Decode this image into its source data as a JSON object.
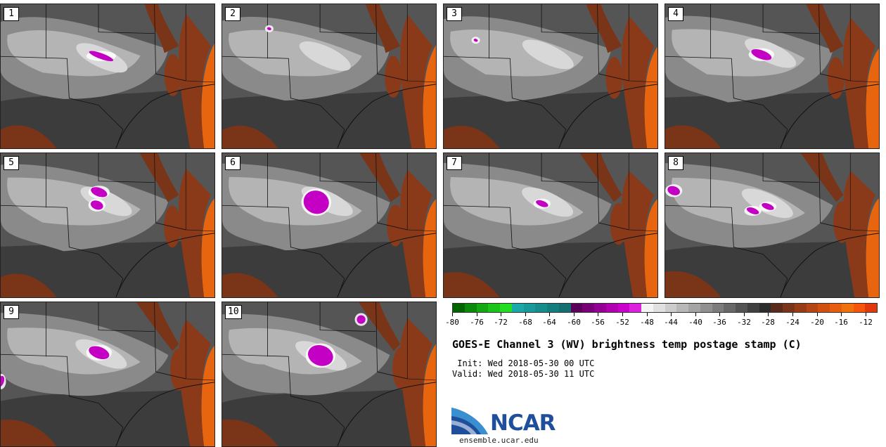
{
  "title": "GOES-E Channel 3 (WV) brightness temp postage stamp (C)",
  "init_label": " Init: Wed 2018-05-30 00 UTC",
  "valid_label": "Valid: Wed 2018-05-30 11 UTC",
  "logo_text": "NCAR",
  "website": "ensemble.ucar.edu",
  "colorbar": {
    "tick_values": [
      "-80",
      "-76",
      "-72",
      "-68",
      "-64",
      "-60",
      "-56",
      "-52",
      "-48",
      "-44",
      "-40",
      "-36",
      "-32",
      "-28",
      "-24",
      "-20",
      "-16",
      "-12"
    ],
    "range": [
      -80,
      -10
    ],
    "colors": [
      "#006400",
      "#0a8a0a",
      "#13a813",
      "#1bc41b",
      "#22dd22",
      "#1aa8a8",
      "#189a9a",
      "#168c8c",
      "#147e7e",
      "#127070",
      "#5a005a",
      "#770077",
      "#940094",
      "#b000b0",
      "#cc00cc",
      "#dd22dd",
      "#f4f4f4",
      "#e0e0e0",
      "#cccccc",
      "#b8b8b8",
      "#a4a4a4",
      "#909090",
      "#7c7c7c",
      "#686868",
      "#545454",
      "#404040",
      "#2c2c2c",
      "#5a2a1a",
      "#7a3418",
      "#983c16",
      "#b54614",
      "#d05010",
      "#e85e10",
      "#f0700e",
      "#f5560c",
      "#e03a0c"
    ]
  },
  "members": [
    {
      "label": "1",
      "blobs": [
        [
          0.47,
          0.36,
          0.06,
          0.02
        ]
      ]
    },
    {
      "label": "2",
      "blobs": [
        [
          0.22,
          0.17,
          0.01,
          0.01
        ]
      ]
    },
    {
      "label": "3",
      "blobs": [
        [
          0.15,
          0.25,
          0.01,
          0.01
        ]
      ]
    },
    {
      "label": "4",
      "blobs": [
        [
          0.45,
          0.35,
          0.05,
          0.03
        ]
      ]
    },
    {
      "label": "5",
      "blobs": [
        [
          0.46,
          0.27,
          0.04,
          0.03
        ],
        [
          0.45,
          0.36,
          0.03,
          0.03
        ]
      ]
    },
    {
      "label": "6",
      "blobs": [
        [
          0.44,
          0.34,
          0.06,
          0.08
        ]
      ]
    },
    {
      "label": "7",
      "blobs": [
        [
          0.46,
          0.35,
          0.03,
          0.02
        ]
      ]
    },
    {
      "label": "8",
      "blobs": [
        [
          0.04,
          0.26,
          0.03,
          0.03
        ],
        [
          0.41,
          0.4,
          0.03,
          0.02
        ],
        [
          0.48,
          0.37,
          0.03,
          0.02
        ]
      ]
    },
    {
      "label": "9",
      "blobs": [
        [
          0.46,
          0.35,
          0.05,
          0.04
        ],
        [
          0.0,
          0.55,
          0.015,
          0.04
        ]
      ]
    },
    {
      "label": "10",
      "blobs": [
        [
          0.46,
          0.37,
          0.06,
          0.07
        ],
        [
          0.65,
          0.12,
          0.02,
          0.03
        ]
      ]
    }
  ]
}
